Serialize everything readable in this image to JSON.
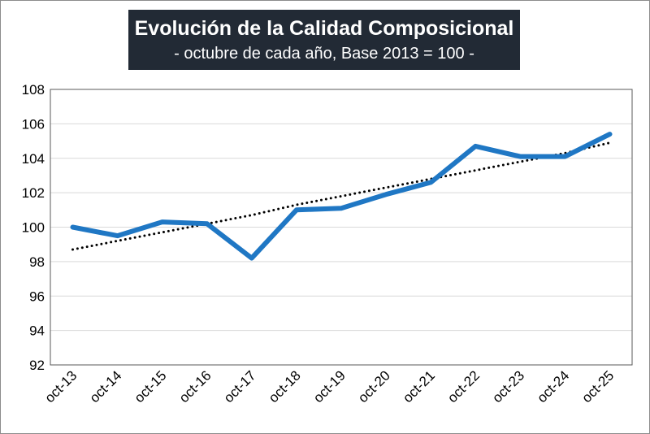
{
  "chart_data": {
    "type": "line",
    "title": "Evolución de la Calidad Composicional",
    "subtitle": "- octubre de cada año, Base 2013 = 100 -",
    "categories": [
      "oct-13",
      "oct-14",
      "oct-15",
      "oct-16",
      "oct-17",
      "oct-18",
      "oct-19",
      "oct-20",
      "oct-21",
      "oct-22",
      "oct-23",
      "oct-24",
      "oct-25"
    ],
    "series": [
      {
        "values": [
          100.0,
          99.5,
          100.3,
          100.2,
          98.2,
          101.0,
          101.1,
          101.9,
          102.6,
          104.7,
          104.1,
          104.1,
          105.4
        ],
        "color": "#1f77c4",
        "style": "solid"
      },
      {
        "values": [
          98.7,
          99.2,
          99.7,
          100.2,
          100.7,
          101.3,
          101.8,
          102.3,
          102.8,
          103.3,
          103.8,
          104.3,
          104.9
        ],
        "color": "#000000",
        "style": "dotted",
        "kind": "trendline"
      }
    ],
    "yticks": [
      92,
      94,
      96,
      98,
      100,
      102,
      104,
      106,
      108
    ],
    "ylim": [
      92,
      108
    ],
    "xlabel": "",
    "ylabel": "",
    "grid": "horizontal",
    "legend": "none"
  }
}
